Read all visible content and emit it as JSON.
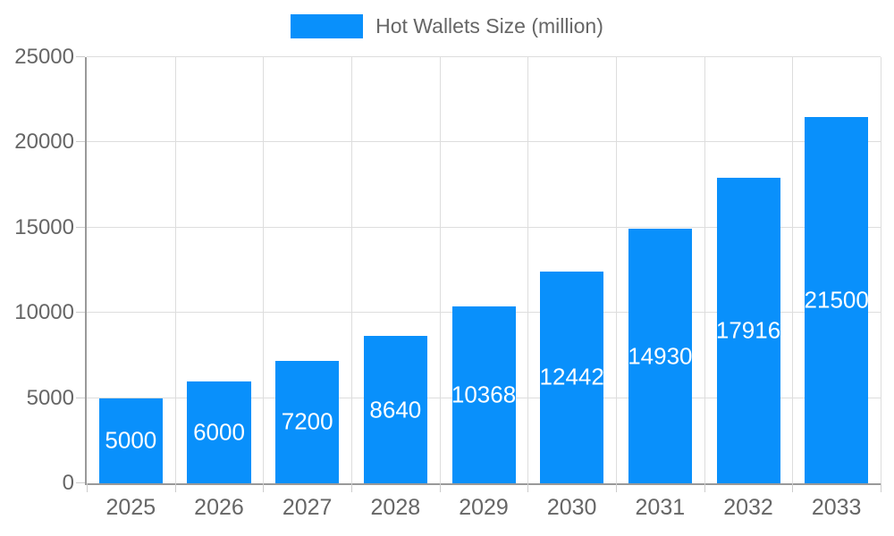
{
  "legend": {
    "label": "Hot Wallets Size (million)",
    "swatch_color": "#0990fb"
  },
  "chart_data": {
    "type": "bar",
    "title": "",
    "xlabel": "",
    "ylabel": "",
    "categories": [
      "2025",
      "2026",
      "2027",
      "2028",
      "2029",
      "2030",
      "2031",
      "2032",
      "2033"
    ],
    "values": [
      5000,
      6000,
      7200,
      8640,
      10368,
      12442,
      14930,
      17916,
      21500
    ],
    "series_name": "Hot Wallets Size (million)",
    "ylim": [
      0,
      25000
    ],
    "yticks": [
      0,
      5000,
      10000,
      15000,
      20000,
      25000
    ],
    "grid": true,
    "legend_position": "top-center",
    "bar_color": "#0990fb",
    "value_label_color": "#ffffff",
    "axis_color": "#999999",
    "gridline_color": "#dddddd",
    "tick_text_color": "#666666"
  }
}
